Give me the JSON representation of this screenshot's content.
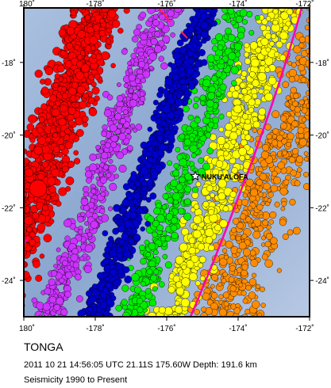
{
  "map": {
    "lon_range": [
      180,
      188
    ],
    "lat_range": [
      -25,
      -16.5
    ],
    "x_ticks": [
      {
        "value": 180,
        "label": "180˚"
      },
      {
        "value": 182,
        "label": "-178˚"
      },
      {
        "value": 184,
        "label": "-176˚"
      },
      {
        "value": 186,
        "label": "-174˚"
      },
      {
        "value": 188,
        "label": "-172˚"
      }
    ],
    "y_ticks": [
      {
        "value": -18,
        "label": "-18˚"
      },
      {
        "value": -20,
        "label": "-20˚"
      },
      {
        "value": -22,
        "label": "-22˚"
      },
      {
        "value": -24,
        "label": "-24˚"
      }
    ],
    "place": {
      "label": "NUKU'ALOFA",
      "lon": 184.8,
      "lat": -21.13
    },
    "depth_colors": {
      "shallow": "#ff8c00",
      "mid_shallow": "#ffff00",
      "mid": "#00ee00",
      "intermediate": "#0000cc",
      "deep_intermediate": "#cc33ff",
      "deep": "#ff0000"
    },
    "plate_boundary_color": "#ff00aa",
    "ocean_color": "#9fb7d8"
  },
  "caption": {
    "title": "TONGA",
    "event": "2011 10 21 14:56:05 UTC 21.11S 175.60W Depth: 191.6 km",
    "period": "Seismicity 1990 to Present"
  }
}
